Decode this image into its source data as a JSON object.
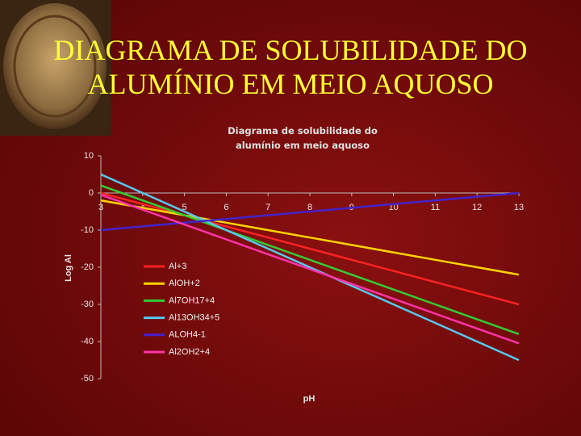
{
  "slide": {
    "title_lines": [
      "DIAGRAMA DE SOLUBILIDADE DO",
      "ALUMÍNIO EM MEIO AQUOSO"
    ]
  },
  "chart_data": {
    "type": "line",
    "title_lines": [
      "Diagrama de solubilidade do",
      "alumínio em meio aquoso"
    ],
    "x_label": "pH",
    "y_label": "Log Al",
    "x": [
      3,
      4,
      5,
      6,
      7,
      8,
      9,
      10,
      11,
      12,
      13
    ],
    "xlim": [
      3,
      13
    ],
    "xticks": [
      3,
      4,
      5,
      6,
      7,
      8,
      9,
      10,
      11,
      12,
      13
    ],
    "ylim": [
      -50,
      10
    ],
    "yticks": [
      10,
      0,
      -10,
      -20,
      -30,
      -40,
      -50
    ],
    "series": [
      {
        "name": "Al+3",
        "color": "#ff2222",
        "values": [
          0,
          -3,
          -6,
          -9,
          -12,
          -15,
          -18,
          -21,
          -24,
          -27,
          -30
        ]
      },
      {
        "name": "AlOH+2",
        "color": "#ffd400",
        "values": [
          -2,
          -4,
          -6,
          -8,
          -10,
          -12,
          -14,
          -16,
          -18,
          -20,
          -22
        ]
      },
      {
        "name": "Al7OH17+4",
        "color": "#33cc33",
        "values": [
          2,
          -2,
          -6,
          -10,
          -14,
          -18,
          -22,
          -26,
          -30,
          -34,
          -38
        ]
      },
      {
        "name": "Al13OH34+5",
        "color": "#55c8ee",
        "values": [
          5,
          0,
          -5,
          -10,
          -15,
          -20,
          -25,
          -30,
          -35,
          -40,
          -45
        ]
      },
      {
        "name": "ALOH4-1",
        "color": "#4422cc",
        "values": [
          -10,
          -9,
          -8,
          -7,
          -6,
          -5,
          -4,
          -3,
          -2,
          -1,
          0
        ]
      },
      {
        "name": "Al2OH2+4",
        "color": "#ff33aa",
        "values": [
          -0.5,
          -4.5,
          -8.5,
          -12.5,
          -16.5,
          -20.5,
          -24.5,
          -28.5,
          -32.5,
          -36.5,
          -40.5
        ]
      }
    ]
  }
}
